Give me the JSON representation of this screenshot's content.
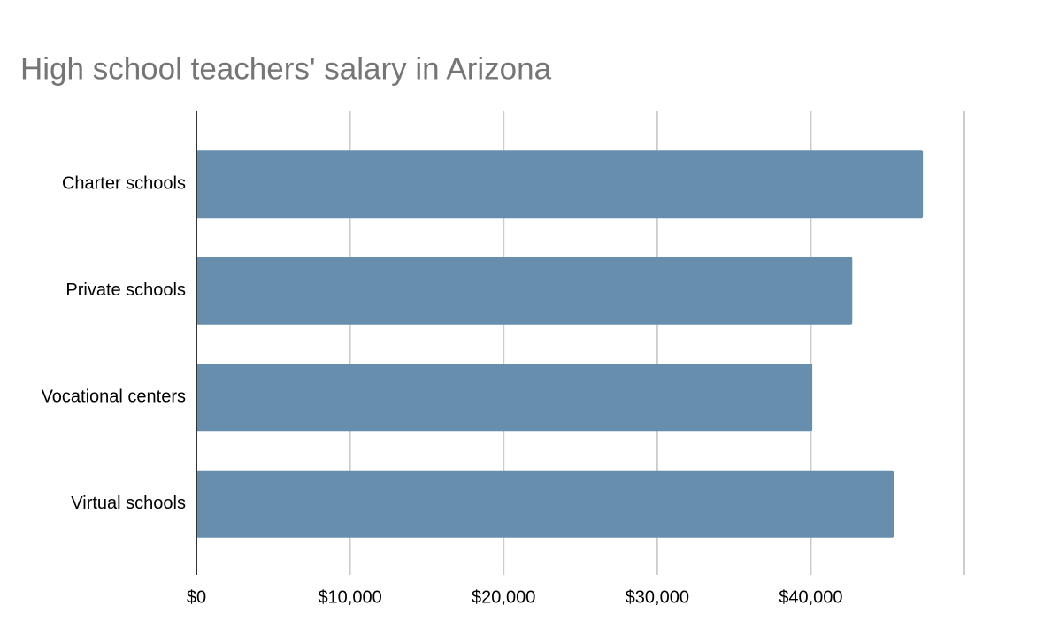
{
  "chart_data": {
    "type": "hbar",
    "title": "High school teachers' salary in Arizona",
    "categories": [
      "Charter schools",
      "Private schools",
      "Vocational centers",
      "Virtual schools"
    ],
    "values": [
      47300,
      42700,
      40100,
      45400
    ],
    "color": "#678ead",
    "xlim": [
      0,
      50000
    ],
    "xticks": [
      {
        "value": 0,
        "label": "$0"
      },
      {
        "value": 10000,
        "label": "$10,000"
      },
      {
        "value": 20000,
        "label": "$20,000"
      },
      {
        "value": 30000,
        "label": "$30,000"
      },
      {
        "value": 40000,
        "label": "$40,000"
      }
    ],
    "grid": true
  }
}
